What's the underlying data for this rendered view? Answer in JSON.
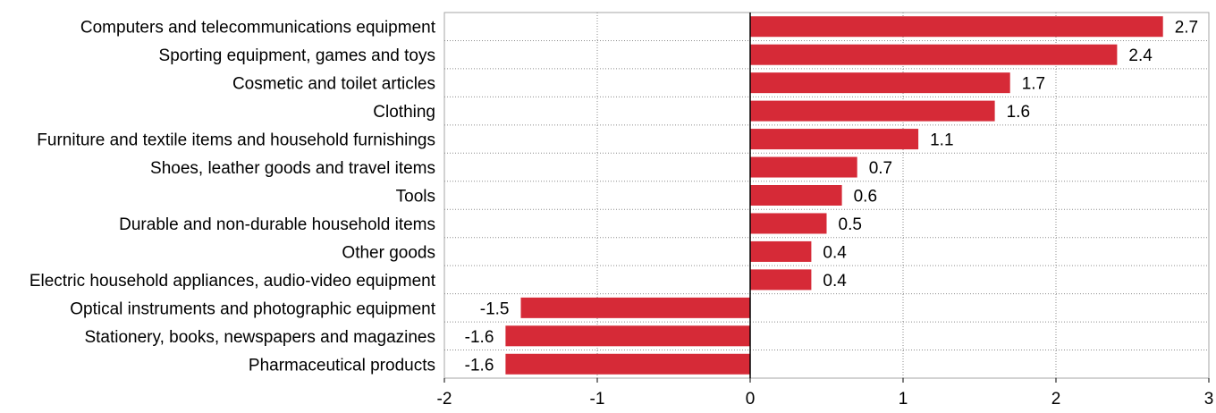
{
  "chart_data": {
    "type": "bar",
    "orientation": "horizontal",
    "title": "",
    "xlabel": "",
    "ylabel": "",
    "xlim": [
      -2,
      3
    ],
    "xticks": [
      -2,
      -1,
      0,
      1,
      2,
      3
    ],
    "grid": true,
    "legend": "none",
    "bar_color": "#d62a37",
    "categories": [
      "Computers and telecommunications equipment",
      "Sporting equipment, games and toys",
      "Cosmetic and toilet articles",
      "Clothing",
      "Furniture and textile items and household furnishings",
      "Shoes, leather goods and travel items",
      "Tools",
      "Durable and non-durable household items",
      "Other goods",
      "Electric household appliances, audio-video equipment",
      "Optical instruments and photographic equipment",
      "Stationery, books, newspapers and magazines",
      "Pharmaceutical products"
    ],
    "values": [
      2.7,
      2.4,
      1.7,
      1.6,
      1.1,
      0.7,
      0.6,
      0.5,
      0.4,
      0.4,
      -1.5,
      -1.6,
      -1.6
    ],
    "value_labels": [
      "2.7",
      "2.4",
      "1.7",
      "1.6",
      "1.1",
      "0.7",
      "0.6",
      "0.5",
      "0.4",
      "0.4",
      "-1.5",
      "-1.6",
      "-1.6"
    ]
  }
}
